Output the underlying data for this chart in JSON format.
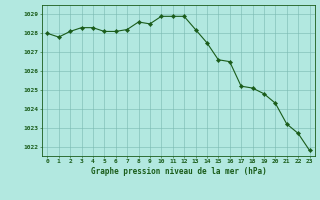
{
  "x": [
    0,
    1,
    2,
    3,
    4,
    5,
    6,
    7,
    8,
    9,
    10,
    11,
    12,
    13,
    14,
    15,
    16,
    17,
    18,
    19,
    20,
    21,
    22,
    23
  ],
  "y": [
    1028.0,
    1027.8,
    1028.1,
    1028.3,
    1028.3,
    1028.1,
    1028.1,
    1028.2,
    1028.6,
    1028.5,
    1028.9,
    1028.9,
    1028.9,
    1028.2,
    1027.5,
    1026.6,
    1026.5,
    1025.2,
    1025.1,
    1024.8,
    1024.3,
    1023.2,
    1022.7,
    1021.8
  ],
  "line_color": "#1a5c1a",
  "marker": "D",
  "marker_size": 2.2,
  "bg_color": "#b2e8e0",
  "grid_color": "#7ab8b0",
  "ylim": [
    1021.5,
    1029.5
  ],
  "yticks": [
    1022,
    1023,
    1024,
    1025,
    1026,
    1027,
    1028,
    1029
  ],
  "xticks": [
    0,
    1,
    2,
    3,
    4,
    5,
    6,
    7,
    8,
    9,
    10,
    11,
    12,
    13,
    14,
    15,
    16,
    17,
    18,
    19,
    20,
    21,
    22,
    23
  ],
  "xlabel": "Graphe pression niveau de la mer (hPa)",
  "xlabel_color": "#1a5c1a",
  "tick_color": "#1a5c1a",
  "axis_color": "#1a5c1a"
}
